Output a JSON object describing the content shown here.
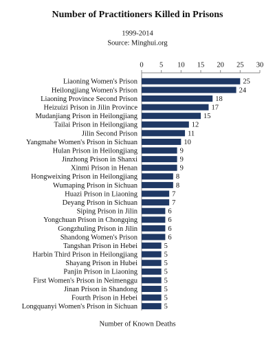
{
  "chart_data": {
    "type": "hbar",
    "title": "Number of Practitioners Killed in Prisons",
    "subtitle": "1999-2014",
    "source": "Source: Minghui.org",
    "xlabel": "Number of Known Deaths",
    "categories": [
      "Liaoning Women's Prison",
      "Heilongjiang Women's Prison",
      "Liaoning Province Second Prison",
      "Heizuizi Prison in Jilin Province",
      "Mudanjiang Prison in Heilongjiang",
      "Tailai Prison in Heilongjiang",
      "Jilin Second Prison",
      "Yangmahe Women's Prison in Sichuan",
      "Hulan Prison in Heilongjiang",
      "Jinzhong Prison in Shanxi",
      "Xinmi Prison in Henan",
      "Hongweixing Prison in Heilongjiang",
      "Wumaping Prison in Sichuan",
      "Huazi Prison in Liaoning",
      "Deyang Prison in Sichuan",
      "Siping Prison in Jilin",
      "Yongchuan Prison in Chongqing",
      "Gongzhuling Prison in Jilin",
      "Shandong Women's Prison",
      "Tangshan Prison in Hebei",
      "Harbin Third Prison in Heilongjiang",
      "Shayang Prison in Hubei",
      "Panjin Prison in Liaoning",
      "First Women's Prison in Neimenggu",
      "Jinan Prison in Shandong",
      "Fourth Prison in Hebei",
      "Longquanyi Women's Prison in Sichuan"
    ],
    "values": [
      25,
      24,
      18,
      17,
      15,
      12,
      11,
      10,
      9,
      9,
      9,
      8,
      8,
      7,
      7,
      6,
      6,
      6,
      6,
      5,
      5,
      5,
      5,
      5,
      5,
      5,
      5
    ],
    "color": "#1f3864",
    "xlim": [
      0,
      30
    ],
    "xticks": [
      0,
      5,
      10,
      15,
      20,
      25,
      30
    ]
  }
}
